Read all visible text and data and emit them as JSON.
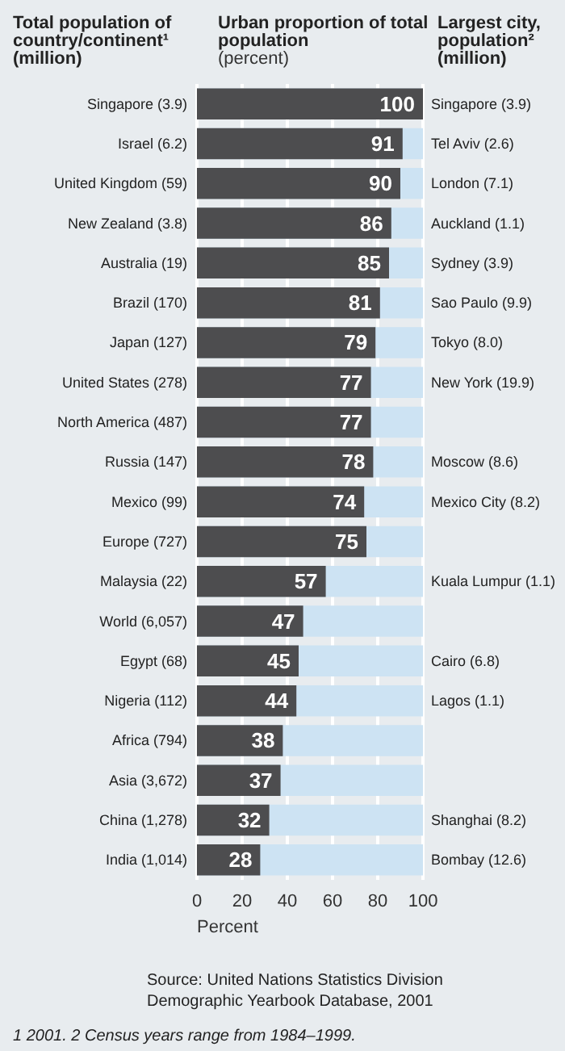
{
  "chart_data": {
    "type": "bar",
    "orientation": "horizontal",
    "title": "Urban proportion of total population",
    "subtitle": "(percent)",
    "ylabel": "Total population of country/continent¹ (million)",
    "y2label": "Largest city, population² (million)",
    "xlabel": "Percent",
    "categories": [
      "Singapore (3.9)",
      "Israel (6.2)",
      "United Kingdom (59)",
      "New Zealand (3.8)",
      "Australia (19)",
      "Brazil (170)",
      "Japan (127)",
      "United States (278)",
      "North America (487)",
      "Russia (147)",
      "Mexico (99)",
      "Europe (727)",
      "Malaysia (22)",
      "World (6,057)",
      "Egypt (68)",
      "Nigeria (112)",
      "Africa (794)",
      "Asia (3,672)",
      "China (1,278)",
      "India (1,014)"
    ],
    "y2_categories": [
      "Singapore (3.9)",
      "Tel Aviv (2.6)",
      "London (7.1)",
      "Auckland (1.1)",
      "Sydney (3.9)",
      "Sao Paulo (9.9)",
      "Tokyo (8.0)",
      "New York (19.9)",
      null,
      "Moscow (8.6)",
      "Mexico City (8.2)",
      null,
      "Kuala Lumpur (1.1)",
      null,
      "Cairo (6.8)",
      "Lagos (1.1)",
      null,
      null,
      "Shanghai (8.2)",
      "Bombay (12.6)"
    ],
    "values": [
      100,
      91,
      90,
      86,
      85,
      81,
      79,
      77,
      77,
      78,
      74,
      75,
      57,
      47,
      45,
      44,
      38,
      37,
      32,
      28
    ],
    "color": "#4d4d4f",
    "data_labels": true,
    "grid": "x",
    "xlim": [
      0,
      100
    ],
    "xticks": [
      0,
      20,
      40,
      60,
      80,
      100
    ],
    "annotations": [
      "Source: United Nations Statistics Division Demographic Yearbook Database, 2001",
      "1 2001. 2 Census years range from 1984–1999."
    ]
  }
}
